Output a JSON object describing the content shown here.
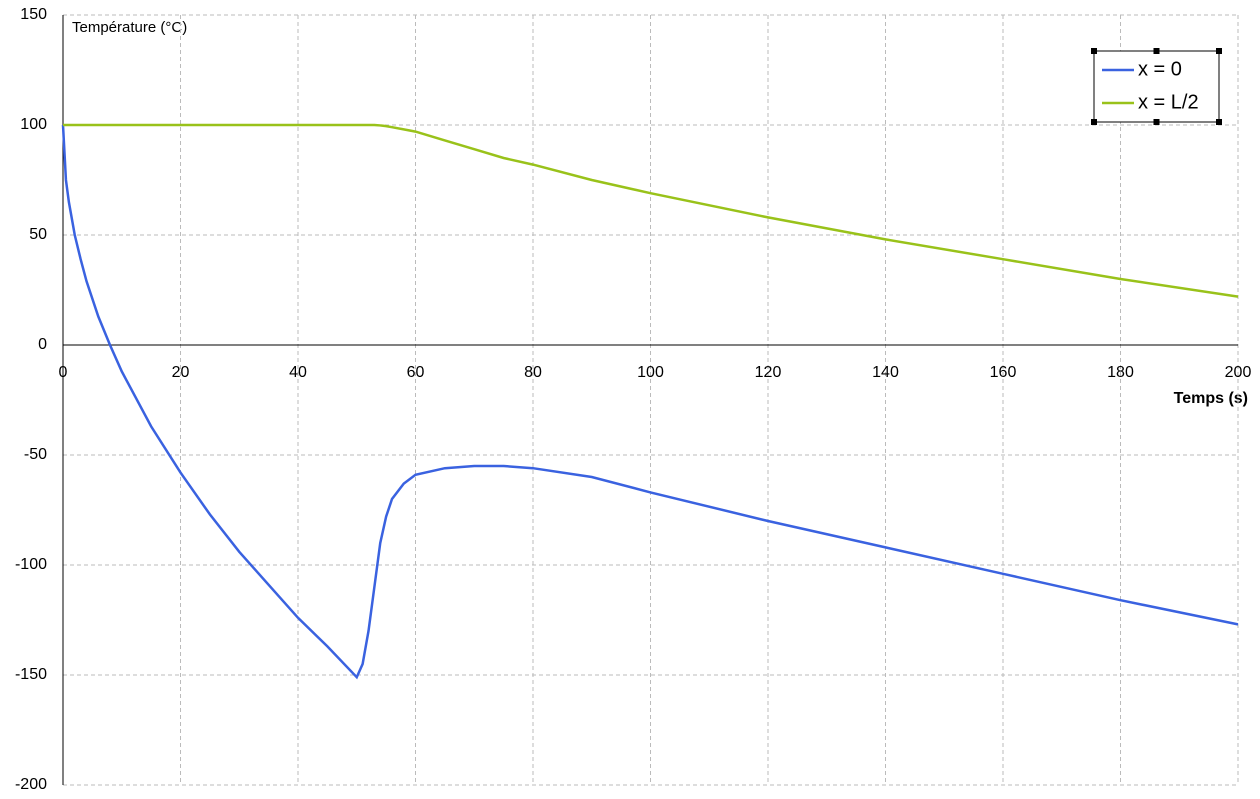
{
  "chart_data": {
    "type": "line",
    "ylabel": "Température (°C)",
    "xlabel": "Temps (s)",
    "x": [
      0,
      0.5,
      1,
      2,
      3,
      4,
      6,
      8,
      10,
      15,
      20,
      25,
      30,
      35,
      40,
      45,
      50,
      51,
      52,
      53,
      54,
      55,
      56,
      58,
      60,
      65,
      70,
      75,
      80,
      90,
      100,
      120,
      140,
      160,
      180,
      200
    ],
    "series": [
      {
        "name": "x = 0",
        "color": "#3a62e0",
        "values": [
          100,
          75,
          65,
          50,
          39,
          29,
          13,
          0,
          -12,
          -37,
          -58,
          -77,
          -94,
          -109,
          -124,
          -137,
          -151,
          -145,
          -130,
          -110,
          -90,
          -78,
          -70,
          -63,
          -59,
          -56,
          -55,
          -55,
          -56,
          -60,
          -67,
          -80,
          -92,
          -104,
          -116,
          -127
        ]
      },
      {
        "name": "x = L/2",
        "color": "#99c21a",
        "values": [
          100,
          100,
          100,
          100,
          100,
          100,
          100,
          100,
          100,
          100,
          100,
          100,
          100,
          100,
          100,
          100,
          100,
          100,
          100,
          100,
          99.8,
          99.5,
          99,
          98,
          97,
          93,
          89,
          85,
          82,
          75,
          69,
          58,
          48,
          39,
          30,
          22
        ]
      }
    ],
    "xlim": [
      0,
      200
    ],
    "xticks": [
      0,
      20,
      40,
      60,
      80,
      100,
      120,
      140,
      160,
      180,
      200
    ],
    "ylim": [
      -200,
      150
    ],
    "yticks": [
      -200,
      -150,
      -100,
      -50,
      0,
      50,
      100,
      150
    ],
    "grid": true,
    "legend": "upper right"
  }
}
